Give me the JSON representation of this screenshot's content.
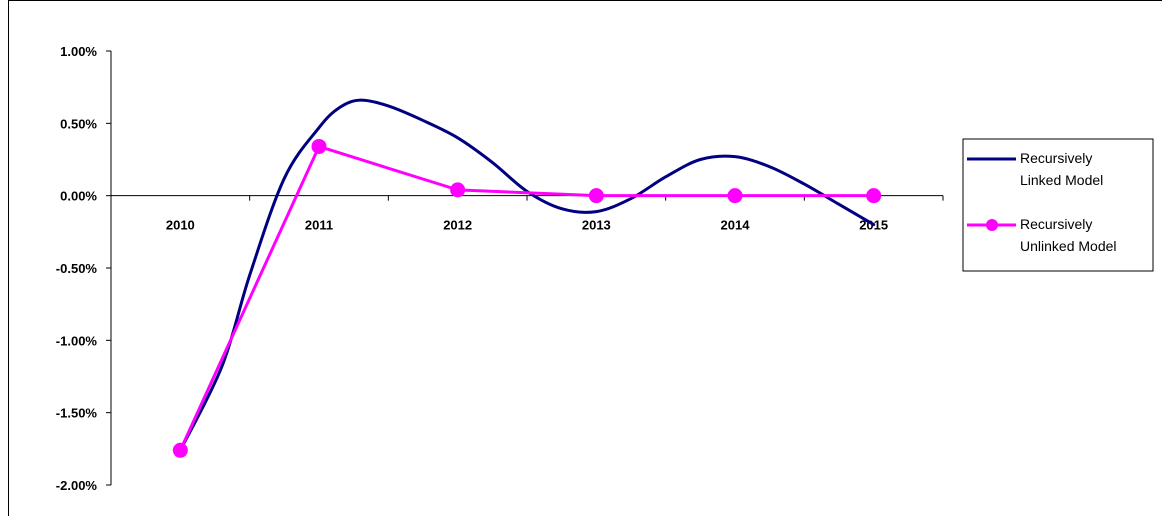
{
  "chart_data": {
    "type": "line",
    "categories": [
      "2010",
      "2011",
      "2012",
      "2013",
      "2014",
      "2015"
    ],
    "y_ticks": [
      "1.00%",
      "0.50%",
      "0.00%",
      "-0.50%",
      "-1.00%",
      "-1.50%",
      "-2.00%"
    ],
    "ylim": [
      -2.0,
      1.0
    ],
    "grid": false,
    "legend_position": "right",
    "series": [
      {
        "name_lines": [
          "Recursively",
          "Linked Model"
        ],
        "color": "#000080",
        "marker": "none",
        "smooth": true,
        "x": [
          2010,
          2010.3,
          2010.5,
          2010.75,
          2011,
          2011.15,
          2011.3,
          2011.5,
          2011.75,
          2012,
          2012.25,
          2012.5,
          2012.75,
          2013,
          2013.25,
          2013.5,
          2013.75,
          2014,
          2014.25,
          2014.5,
          2014.75,
          2015
        ],
        "values": [
          -1.76,
          -1.18,
          -0.55,
          0.12,
          0.47,
          0.61,
          0.66,
          0.62,
          0.52,
          0.4,
          0.23,
          0.03,
          -0.09,
          -0.11,
          -0.02,
          0.13,
          0.25,
          0.27,
          0.2,
          0.08,
          -0.06,
          -0.2
        ]
      },
      {
        "name_lines": [
          "Recursively",
          "Unlinked Model"
        ],
        "color": "#ff00ff",
        "marker": "circle",
        "smooth": false,
        "x": [
          2010,
          2011,
          2012,
          2013,
          2014,
          2015
        ],
        "values": [
          -1.76,
          0.34,
          0.04,
          0.0,
          0.0,
          0.0
        ]
      }
    ]
  }
}
